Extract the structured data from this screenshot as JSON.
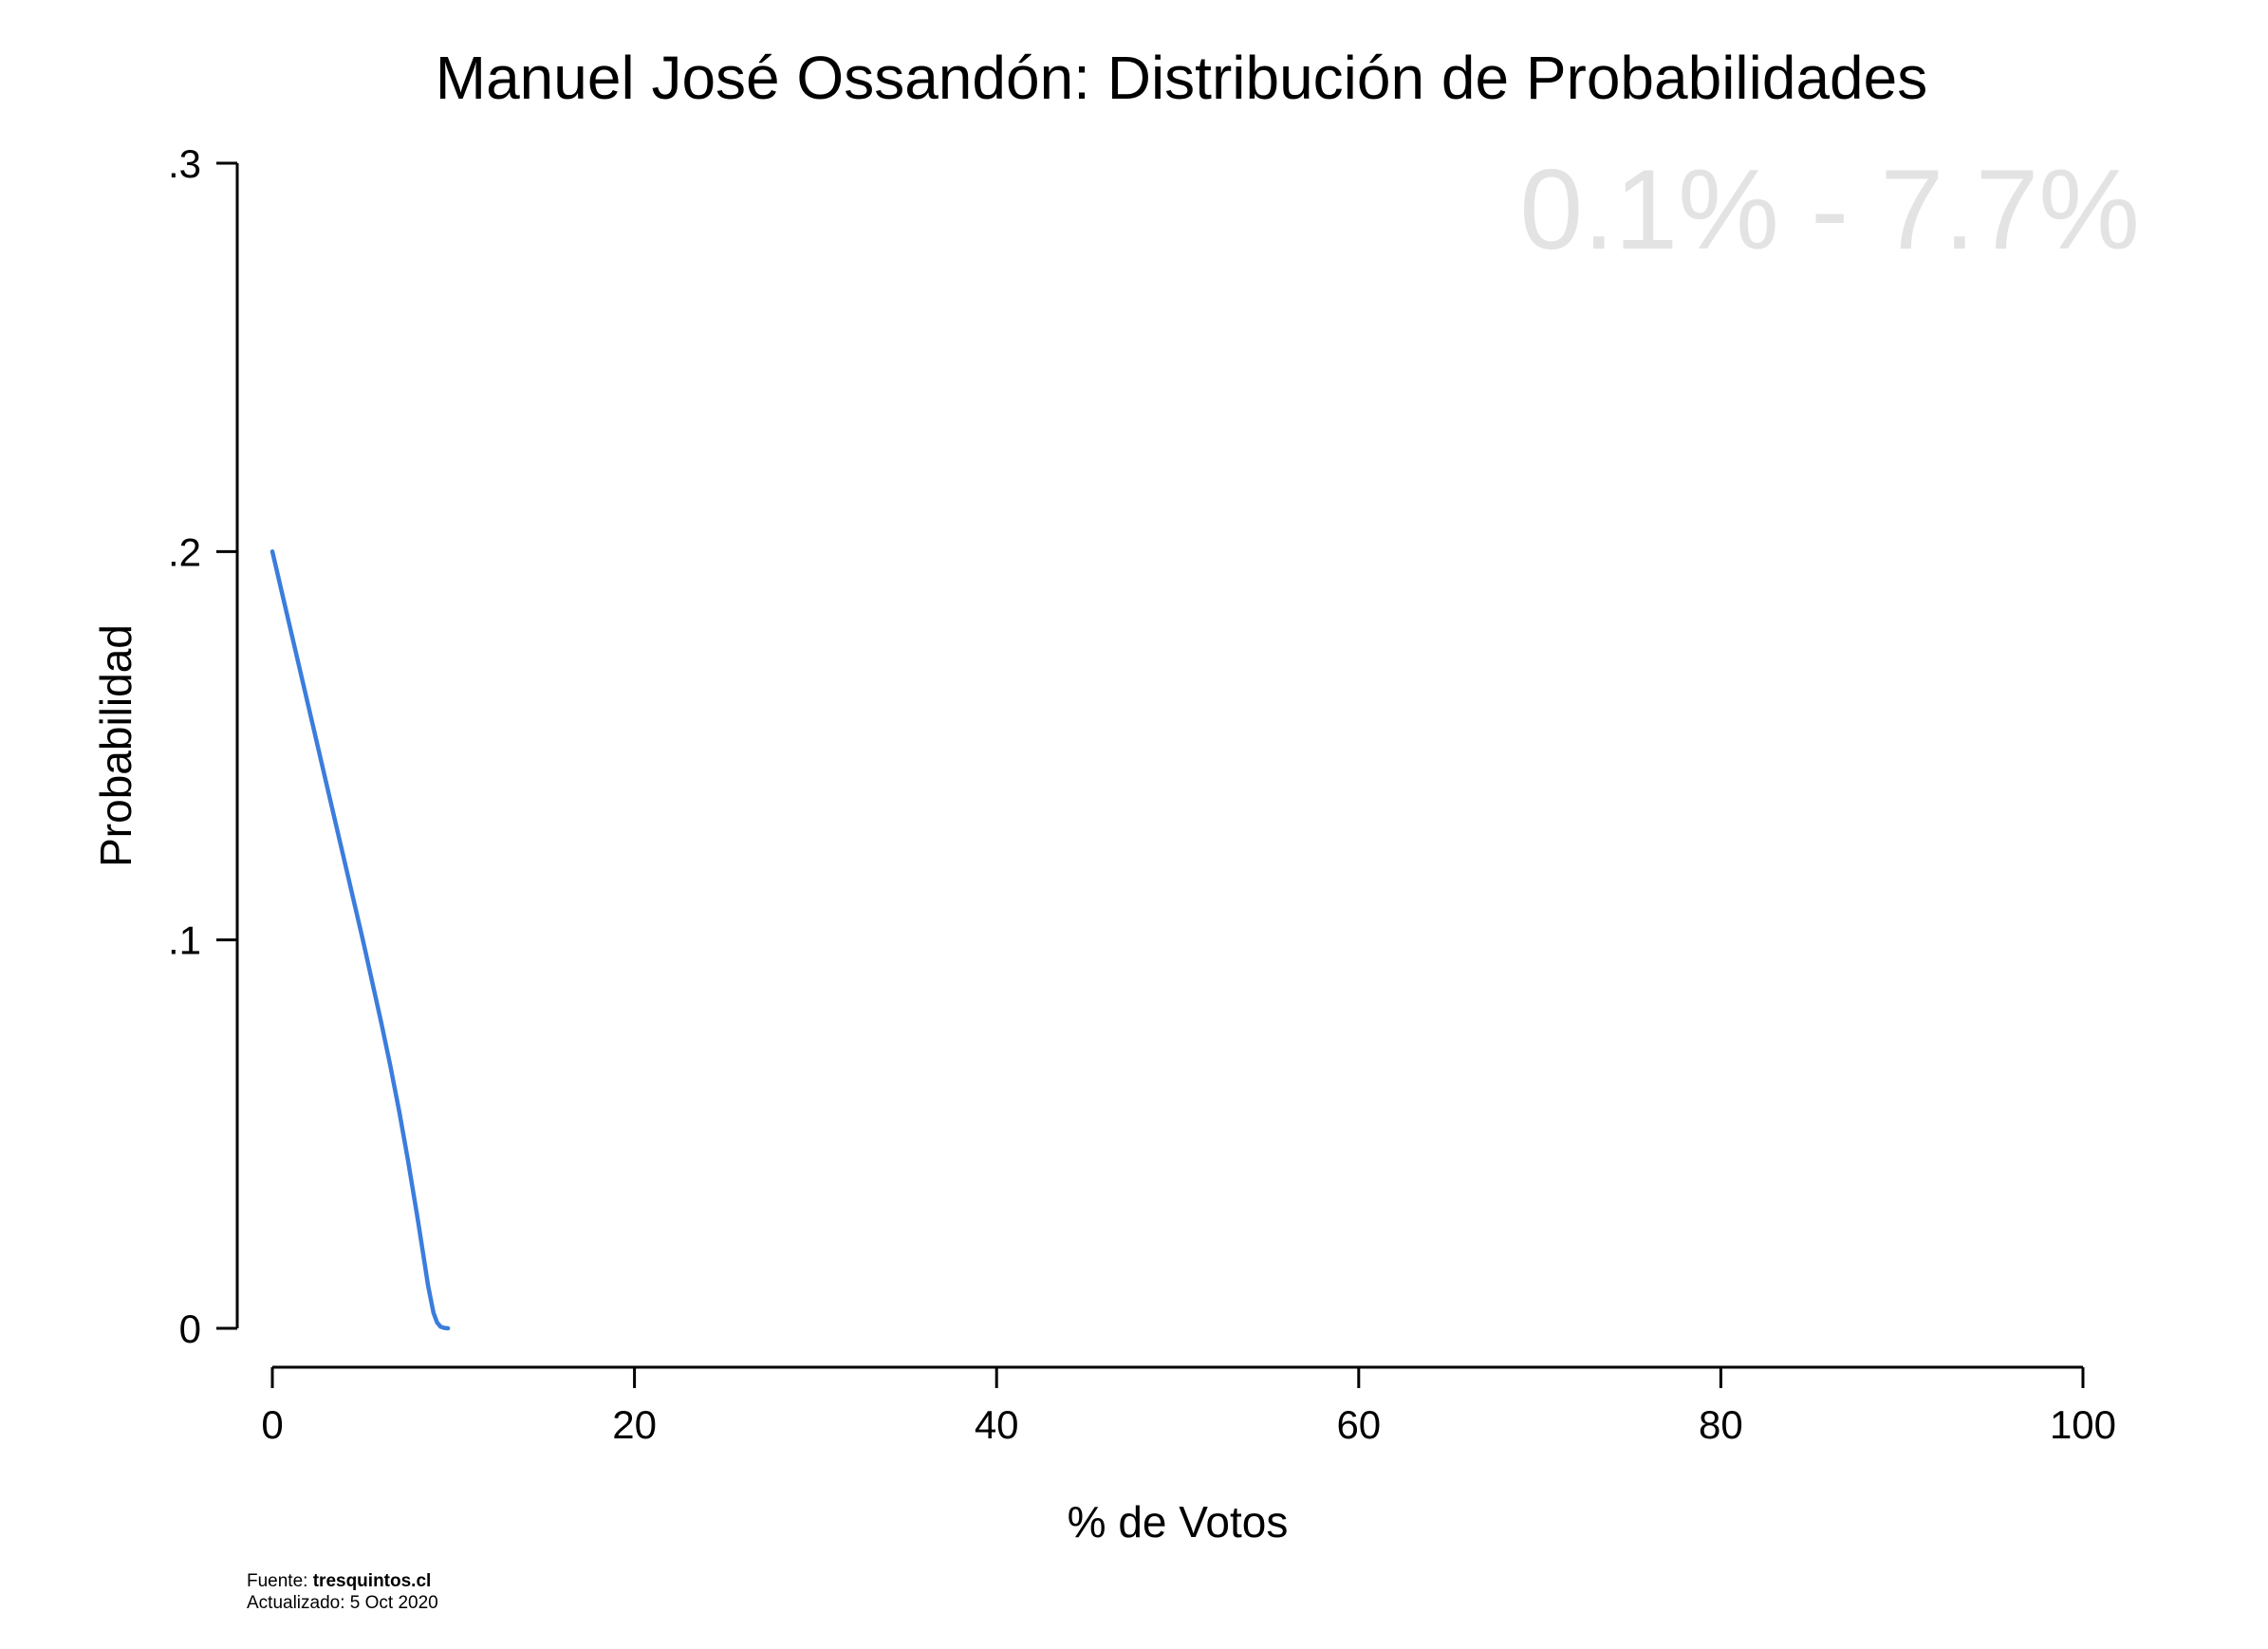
{
  "chart_data": {
    "type": "line",
    "title": "Manuel José Ossandón: Distribución de Probabilidades",
    "xlabel": "% de Votos",
    "ylabel": "Probabilidad",
    "xlim": [
      0,
      100
    ],
    "ylim": [
      0,
      0.3
    ],
    "x_ticks": [
      0,
      20,
      40,
      60,
      80,
      100
    ],
    "x_tick_labels": [
      "0",
      "20",
      "40",
      "60",
      "80",
      "100"
    ],
    "y_ticks": [
      0,
      0.1,
      0.2,
      0.3
    ],
    "y_tick_labels": [
      "0",
      ".1",
      ".2",
      ".3"
    ],
    "grid": false,
    "legend": "none",
    "annotation": "0.1% - 7.7%",
    "series": [
      {
        "color": "#3b7ddd",
        "x": [
          0,
          1,
          2,
          3,
          4,
          5,
          6,
          6.5,
          7,
          7.5,
          8,
          8.3,
          8.6,
          8.9,
          9.1,
          9.3,
          9.5,
          9.7
        ],
        "y": [
          0.2,
          0.18,
          0.16,
          0.14,
          0.12,
          0.1,
          0.079,
          0.068,
          0.056,
          0.043,
          0.029,
          0.02,
          0.011,
          0.004,
          0.0015,
          0.0004,
          0.0001,
          0.0
        ]
      }
    ]
  },
  "footer": {
    "source_prefix": "Fuente: ",
    "source_site": "tresquintos.cl",
    "updated": "Actualizado: 5 Oct 2020"
  },
  "colors": {
    "annotation": "#e3e3e3",
    "axis": "#000000"
  }
}
